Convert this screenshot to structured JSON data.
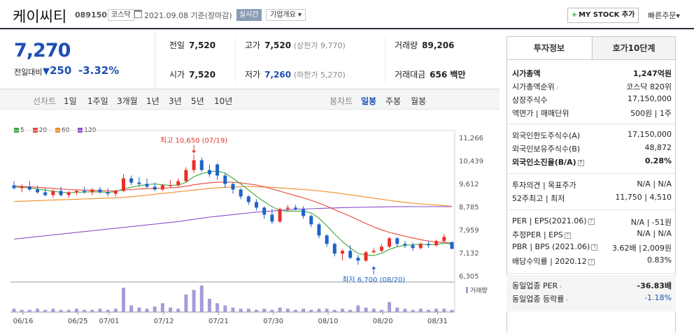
{
  "header": {
    "company_name": "케이씨티",
    "code": "089150",
    "market_badge": "코스닥",
    "date_text": "2021.09.08 기준(장마감)",
    "realtime_badge": "실시간",
    "company_info_label": "기업개요",
    "company_info_arrow": "▾",
    "mystock_plus": "+",
    "mystock_label": "MY STOCK 추가",
    "quick_order_label": "빠른주문",
    "quick_order_arrow": "▼"
  },
  "summary": {
    "price": "7,270",
    "change_label": "전일대비",
    "change_arrow": "▼",
    "change_amount": "250",
    "change_pct": "-3.32%",
    "prev_close_label": "전일",
    "prev_close": "7,520",
    "open_label": "시가",
    "open": "7,520",
    "high_label": "고가",
    "high": "7,520",
    "upper_limit": "(상한가 9,770)",
    "low_label": "저가",
    "low": "7,260",
    "lower_limit": "(하한가 5,270)",
    "volume_label": "거래량",
    "volume": "89,206",
    "amount_label": "거래대금",
    "amount": "656 백만"
  },
  "period_bar": {
    "line_label": "선차트",
    "periods": [
      "1일",
      "1주일",
      "3개월",
      "1년",
      "3년",
      "5년",
      "10년"
    ],
    "candle_label": "봉차트",
    "candles": [
      "일봉",
      "주봉",
      "월봉"
    ],
    "active_candle": "일봉"
  },
  "chart_data": {
    "type": "candlestick",
    "ma_legend": [
      {
        "name": "5",
        "color": "#3aa63a"
      },
      {
        "name": "20",
        "color": "#e8463a"
      },
      {
        "name": "60",
        "color": "#f08c20"
      },
      {
        "name": "120",
        "color": "#8a4fc9"
      }
    ],
    "y_ticks": [
      "11,266",
      "10,439",
      "9,612",
      "8,785",
      "7,959",
      "7,132",
      "6,305"
    ],
    "ylim": [
      6305,
      11266
    ],
    "x_ticks": [
      "06/16",
      "06/25",
      "07/01",
      "07/12",
      "07/21",
      "07/30",
      "08/10",
      "08/20",
      "08/31"
    ],
    "x_tick_index": [
      0,
      7,
      11,
      18,
      25,
      32,
      39,
      46,
      53
    ],
    "high_annotation": "최고 10,650 (07/19)",
    "high_index": 23,
    "high_value": 10650,
    "low_annotation": "최저 6,700 (08/20)",
    "low_index": 46,
    "low_value": 6700,
    "volume_label": "거래량",
    "candles": [
      {
        "o": 9550,
        "h": 9700,
        "l": 9400,
        "c": 9450
      },
      {
        "o": 9450,
        "h": 9600,
        "l": 9300,
        "c": 9500
      },
      {
        "o": 9500,
        "h": 9700,
        "l": 9350,
        "c": 9400
      },
      {
        "o": 9400,
        "h": 9550,
        "l": 9250,
        "c": 9300
      },
      {
        "o": 9300,
        "h": 9450,
        "l": 9150,
        "c": 9200
      },
      {
        "o": 9200,
        "h": 9400,
        "l": 9100,
        "c": 9350
      },
      {
        "o": 9350,
        "h": 9500,
        "l": 9150,
        "c": 9200
      },
      {
        "o": 9200,
        "h": 9350,
        "l": 9100,
        "c": 9300
      },
      {
        "o": 9300,
        "h": 9400,
        "l": 9200,
        "c": 9350
      },
      {
        "o": 9350,
        "h": 9500,
        "l": 9250,
        "c": 9300
      },
      {
        "o": 9300,
        "h": 9450,
        "l": 9200,
        "c": 9400
      },
      {
        "o": 9400,
        "h": 9500,
        "l": 9250,
        "c": 9300
      },
      {
        "o": 9300,
        "h": 9450,
        "l": 9150,
        "c": 9250
      },
      {
        "o": 9250,
        "h": 9400,
        "l": 9150,
        "c": 9350
      },
      {
        "o": 9350,
        "h": 9950,
        "l": 9300,
        "c": 9800
      },
      {
        "o": 9800,
        "h": 9900,
        "l": 9550,
        "c": 9650
      },
      {
        "o": 9650,
        "h": 9850,
        "l": 9500,
        "c": 9600
      },
      {
        "o": 9600,
        "h": 9800,
        "l": 9450,
        "c": 9500
      },
      {
        "o": 9500,
        "h": 9650,
        "l": 9350,
        "c": 9400
      },
      {
        "o": 9400,
        "h": 9600,
        "l": 9350,
        "c": 9550
      },
      {
        "o": 9550,
        "h": 9750,
        "l": 9450,
        "c": 9550
      },
      {
        "o": 9550,
        "h": 9800,
        "l": 9500,
        "c": 9700
      },
      {
        "o": 9700,
        "h": 10200,
        "l": 9650,
        "c": 10100
      },
      {
        "o": 10100,
        "h": 10650,
        "l": 10000,
        "c": 10450
      },
      {
        "o": 10450,
        "h": 10550,
        "l": 10050,
        "c": 10100
      },
      {
        "o": 10100,
        "h": 10300,
        "l": 9850,
        "c": 9950
      },
      {
        "o": 10300,
        "h": 10350,
        "l": 9750,
        "c": 9900
      },
      {
        "o": 9900,
        "h": 10000,
        "l": 9450,
        "c": 9600
      },
      {
        "o": 9600,
        "h": 9650,
        "l": 9250,
        "c": 9400
      },
      {
        "o": 9400,
        "h": 9450,
        "l": 9050,
        "c": 9150
      },
      {
        "o": 9150,
        "h": 9200,
        "l": 8850,
        "c": 8950
      },
      {
        "o": 8950,
        "h": 9050,
        "l": 8650,
        "c": 8750
      },
      {
        "o": 8750,
        "h": 8800,
        "l": 8350,
        "c": 8500
      },
      {
        "o": 8500,
        "h": 8700,
        "l": 8150,
        "c": 8250
      },
      {
        "o": 8250,
        "h": 8750,
        "l": 8200,
        "c": 8700
      },
      {
        "o": 8700,
        "h": 8850,
        "l": 8600,
        "c": 8750
      },
      {
        "o": 8750,
        "h": 8850,
        "l": 8650,
        "c": 8700
      },
      {
        "o": 8700,
        "h": 8800,
        "l": 8350,
        "c": 8450
      },
      {
        "o": 8450,
        "h": 8500,
        "l": 8050,
        "c": 8150
      },
      {
        "o": 8150,
        "h": 8200,
        "l": 7650,
        "c": 7750
      },
      {
        "o": 7750,
        "h": 7800,
        "l": 7350,
        "c": 7450
      },
      {
        "o": 7450,
        "h": 7500,
        "l": 7000,
        "c": 7100
      },
      {
        "o": 7100,
        "h": 7250,
        "l": 6850,
        "c": 7200
      },
      {
        "o": 7200,
        "h": 7400,
        "l": 6900,
        "c": 6950
      },
      {
        "o": 6950,
        "h": 7050,
        "l": 6700,
        "c": 6850
      },
      {
        "o": 6850,
        "h": 7200,
        "l": 6800,
        "c": 7150
      },
      {
        "o": 7150,
        "h": 7300,
        "l": 7100,
        "c": 7200
      },
      {
        "o": 7200,
        "h": 7450,
        "l": 7150,
        "c": 7350
      },
      {
        "o": 7350,
        "h": 7700,
        "l": 7300,
        "c": 7650
      },
      {
        "o": 7650,
        "h": 7700,
        "l": 7350,
        "c": 7450
      },
      {
        "o": 7450,
        "h": 7550,
        "l": 7300,
        "c": 7400
      },
      {
        "o": 7400,
        "h": 7500,
        "l": 7200,
        "c": 7300
      },
      {
        "o": 7300,
        "h": 7500,
        "l": 7250,
        "c": 7450
      },
      {
        "o": 7450,
        "h": 7550,
        "l": 7300,
        "c": 7400
      },
      {
        "o": 7400,
        "h": 7600,
        "l": 7350,
        "c": 7550
      },
      {
        "o": 7550,
        "h": 7800,
        "l": 7500,
        "c": 7700
      },
      {
        "o": 7520,
        "h": 7520,
        "l": 7260,
        "c": 7270
      }
    ],
    "ma5": [
      9500,
      9480,
      9460,
      9420,
      9380,
      9340,
      9300,
      9290,
      9300,
      9310,
      9320,
      9310,
      9300,
      9320,
      9420,
      9480,
      9540,
      9580,
      9600,
      9570,
      9550,
      9560,
      9660,
      9860,
      9970,
      10040,
      10060,
      9990,
      9800,
      9600,
      9380,
      9160,
      8960,
      8780,
      8650,
      8620,
      8620,
      8620,
      8560,
      8370,
      8100,
      7800,
      7530,
      7300,
      7110,
      7050,
      7030,
      7110,
      7250,
      7350,
      7390,
      7420,
      7440,
      7420,
      7420,
      7480,
      7440
    ],
    "ma20": [
      9520,
      9510,
      9500,
      9480,
      9460,
      9440,
      9420,
      9400,
      9390,
      9380,
      9370,
      9360,
      9350,
      9350,
      9380,
      9400,
      9420,
      9430,
      9440,
      9450,
      9460,
      9480,
      9520,
      9570,
      9610,
      9640,
      9660,
      9670,
      9660,
      9640,
      9600,
      9560,
      9500,
      9420,
      9340,
      9260,
      9180,
      9100,
      9010,
      8910,
      8800,
      8680,
      8560,
      8440,
      8310,
      8180,
      8060,
      7950,
      7860,
      7790,
      7720,
      7660,
      7600,
      7550,
      7520,
      7500,
      7480
    ],
    "ma60": [
      8970,
      8980,
      8990,
      9000,
      9010,
      9020,
      9030,
      9040,
      9050,
      9060,
      9070,
      9080,
      9090,
      9100,
      9120,
      9140,
      9170,
      9200,
      9230,
      9260,
      9290,
      9320,
      9350,
      9380,
      9410,
      9440,
      9460,
      9480,
      9490,
      9500,
      9500,
      9500,
      9490,
      9480,
      9460,
      9440,
      9420,
      9400,
      9380,
      9350,
      9320,
      9290,
      9250,
      9210,
      9170,
      9130,
      9090,
      9050,
      9010,
      8970,
      8940,
      8910,
      8880,
      8860,
      8840,
      8820,
      8800
    ],
    "ma120": [
      7620,
      7650,
      7680,
      7710,
      7740,
      7770,
      7800,
      7830,
      7860,
      7890,
      7920,
      7950,
      7980,
      8010,
      8040,
      8070,
      8100,
      8130,
      8160,
      8190,
      8220,
      8250,
      8290,
      8330,
      8370,
      8410,
      8440,
      8470,
      8500,
      8530,
      8560,
      8590,
      8610,
      8630,
      8650,
      8670,
      8690,
      8700,
      8710,
      8720,
      8730,
      8740,
      8750,
      8755,
      8760,
      8765,
      8770,
      8775,
      8780,
      8782,
      8784,
      8785,
      8786,
      8786,
      8786,
      8786,
      8786
    ],
    "volumes": [
      3,
      2,
      2,
      3,
      2,
      3,
      2,
      2,
      3,
      2,
      2,
      3,
      2,
      3,
      22,
      6,
      4,
      3,
      5,
      8,
      4,
      3,
      16,
      20,
      24,
      12,
      8,
      6,
      4,
      3,
      3,
      2,
      3,
      2,
      4,
      3,
      2,
      3,
      2,
      3,
      3,
      2,
      3,
      2,
      6,
      4,
      3,
      2,
      9,
      4,
      3,
      2,
      3,
      2,
      3,
      3,
      2
    ]
  },
  "right_panel": {
    "tabs": [
      "투자정보",
      "호가10단계"
    ],
    "rows": [
      {
        "label": "시가총액",
        "value": "1,247억원",
        "lbold": true,
        "rbold": true
      },
      {
        "label": "시가총액순위",
        "arrow": "›",
        "value": "코스닥 820위"
      },
      {
        "label": "상장주식수",
        "value": "17,150,000"
      },
      {
        "label": "액면가 | 매매단위",
        "value": "500원 | 1주"
      },
      {
        "label": "외국인한도주식수(A)",
        "value": "17,150,000"
      },
      {
        "label": "외국인보유주식수(B)",
        "value": "48,872"
      },
      {
        "label": "외국인소진율(B/A)",
        "q": "?",
        "value": "0.28%",
        "lbold": true,
        "rbold": true
      },
      {
        "label": "투자의견 | 목표주가",
        "value": "N/A | N/A"
      },
      {
        "label": "52주최고 | 최저",
        "value": "11,750 | 4,510"
      },
      {
        "label": "PER | EPS(2021.06)",
        "q": "?",
        "value": "N/A | -51원"
      },
      {
        "label": "추정PER | EPS",
        "q": "?",
        "value": "N/A | N/A"
      },
      {
        "label": "PBR | BPS (2021.06)",
        "q": "?",
        "mid": "3.62배",
        "value": "2,009원"
      },
      {
        "label": "배당수익률 | 2020.12",
        "q": "?",
        "value": "0.83%"
      },
      {
        "label": "동일업종 PER",
        "arrow": "›",
        "value": "-36.83배",
        "rbold": true
      },
      {
        "label": "동일업종 등락률",
        "arrow": "›",
        "value": "-1.18%",
        "rblue": true
      }
    ]
  },
  "colors": {
    "up": "#e8302a",
    "down": "#1e63c8",
    "accent": "#1e4fb3",
    "volume": "#a89ad6"
  }
}
